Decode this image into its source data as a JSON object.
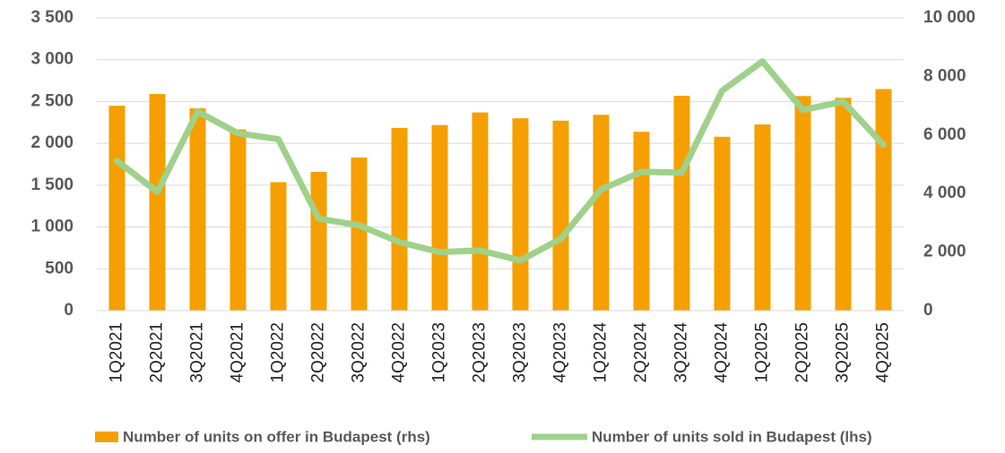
{
  "chart_data": {
    "type": "bar-line",
    "categories": [
      "1Q2021",
      "2Q2021",
      "3Q2021",
      "4Q2021",
      "1Q2022",
      "2Q2022",
      "3Q2022",
      "4Q2022",
      "1Q2023",
      "2Q2023",
      "3Q2023",
      "4Q2023",
      "1Q2024",
      "2Q2024",
      "3Q2024",
      "4Q2024",
      "1Q2025",
      "2Q2025",
      "3Q2025",
      "4Q2025"
    ],
    "series": [
      {
        "name": "Number of units on offer in Budapest (rhs)",
        "type": "bar",
        "axis": "y2",
        "color": "#f5a000",
        "values": [
          7000,
          7400,
          6910,
          6190,
          4390,
          4740,
          5230,
          6240,
          6340,
          6770,
          6570,
          6490,
          6690,
          6110,
          7340,
          5940,
          6360,
          7330,
          7270,
          7570
        ]
      },
      {
        "name": "Number of units sold in Budapest (lhs)",
        "type": "line",
        "axis": "y",
        "color": "#9fd18b",
        "values": [
          1790,
          1420,
          2380,
          2120,
          2050,
          1100,
          1020,
          820,
          700,
          720,
          600,
          860,
          1450,
          1660,
          1650,
          2630,
          2980,
          2400,
          2500,
          1980
        ]
      }
    ],
    "ylim": [
      0,
      3500
    ],
    "yticks": [
      0,
      500,
      {
        "value": 1000,
        "label": "1 000"
      },
      {
        "value": 1500,
        "label": "1 500"
      },
      {
        "value": 2000,
        "label": "2 000"
      },
      {
        "value": 2500,
        "label": "2 500"
      },
      {
        "value": 3000,
        "label": "3 000"
      },
      {
        "value": 3500,
        "label": "3 500"
      }
    ],
    "y2lim": [
      0,
      10000
    ],
    "y2ticks": [
      0,
      {
        "value": 2000,
        "label": "2 000"
      },
      {
        "value": 4000,
        "label": "4 000"
      },
      {
        "value": 6000,
        "label": "6 000"
      },
      {
        "value": 8000,
        "label": "8 000"
      },
      {
        "value": 10000,
        "label": "10 000"
      }
    ],
    "grid": true,
    "legend": "bottom"
  }
}
